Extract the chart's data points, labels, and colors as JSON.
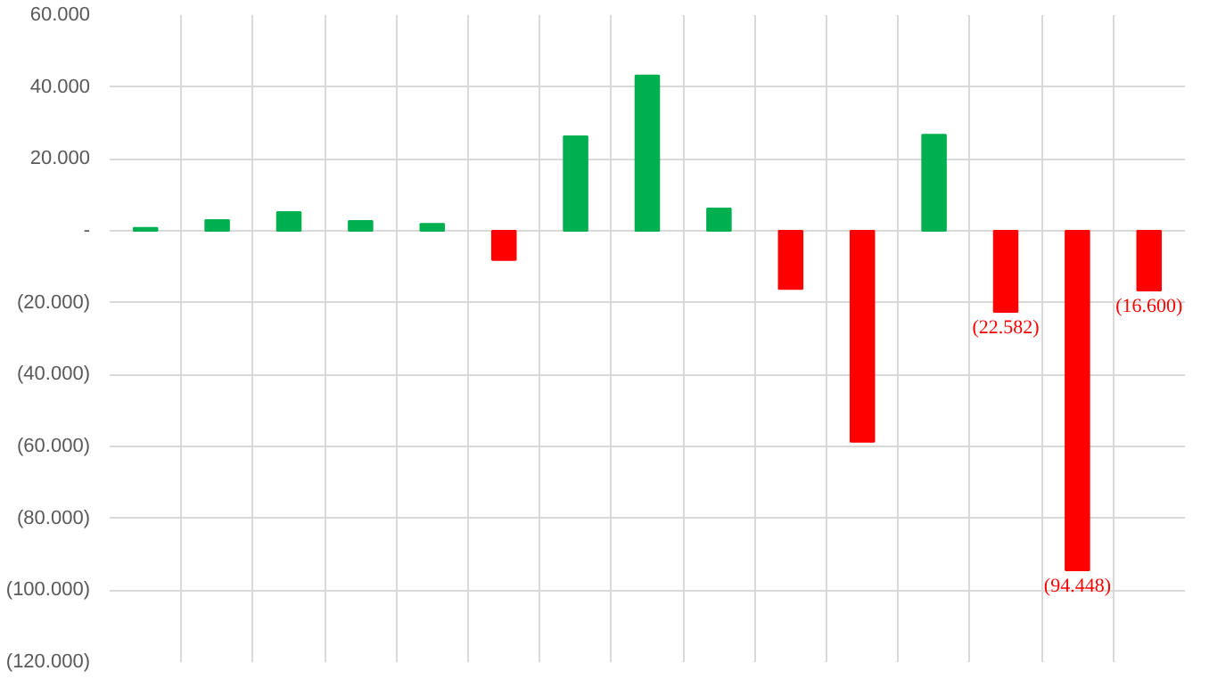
{
  "chart_data": {
    "type": "bar",
    "categories": [
      null,
      null,
      null,
      null,
      null,
      null,
      null,
      null,
      null,
      null,
      null,
      null,
      null,
      null,
      null
    ],
    "values": [
      0.8,
      3.0,
      5.2,
      2.7,
      1.9,
      -8.1,
      26.3,
      43.2,
      6.2,
      -16.2,
      -58.7,
      26.7,
      -22.582,
      -94.448,
      -16.6
    ],
    "colors": [
      "#00b050",
      "#00b050",
      "#00b050",
      "#00b050",
      "#00b050",
      "#ff0000",
      "#00b050",
      "#00b050",
      "#00b050",
      "#ff0000",
      "#ff0000",
      "#00b050",
      "#ff0000",
      "#ff0000",
      "#ff0000"
    ],
    "value_labels": [
      null,
      null,
      null,
      null,
      null,
      null,
      null,
      null,
      null,
      null,
      null,
      null,
      "(22.582)",
      "(94.448)",
      "(16.600)"
    ],
    "ylim": [
      -120,
      60
    ],
    "yticks": [
      {
        "value": 60,
        "label": "60.000"
      },
      {
        "value": 40,
        "label": "40.000"
      },
      {
        "value": 20,
        "label": "20.000"
      },
      {
        "value": 0,
        "label": "-"
      },
      {
        "value": -20,
        "label": "(20.000)"
      },
      {
        "value": -40,
        "label": "(40.000)"
      },
      {
        "value": -60,
        "label": "(60.000)"
      },
      {
        "value": -80,
        "label": "(80.000)"
      },
      {
        "value": -100,
        "label": "(100.000)"
      },
      {
        "value": -120,
        "label": "(120.000)"
      }
    ],
    "grid": true,
    "tick_labels": "y"
  }
}
